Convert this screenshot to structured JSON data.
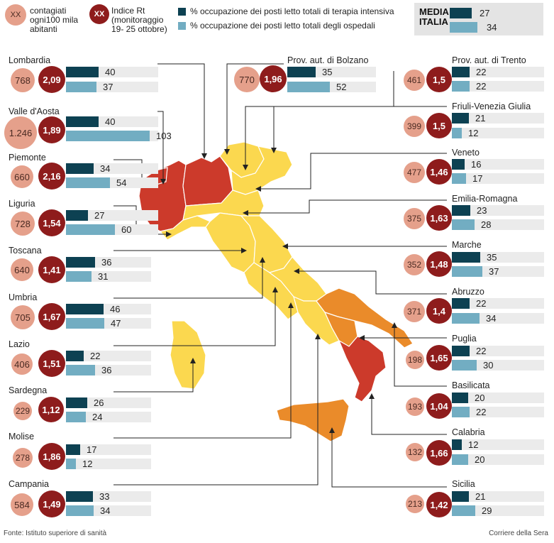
{
  "legend": {
    "cases_sample": "XX",
    "cases_label": "contagiati ogni100 mila abitanti",
    "rt_sample": "XX",
    "rt_label": "Indice Rt (monitoraggio 19- 25 ottobre)",
    "icu_label": "% occupazione dei posti letto totali di terapia intensiva",
    "hosp_label": "% occupazione dei posti letto totali degli ospedali"
  },
  "national": {
    "label": "MEDIA ITALIA",
    "icu": 27,
    "hosp": 34
  },
  "colors": {
    "icu": "#0d4152",
    "hosp": "#72adc2",
    "cases_circle": "#e5a08b",
    "rt_circle": "#8e1c1c",
    "zone_red": "#cc3a2b",
    "zone_orange": "#ea8b2a",
    "zone_yellow": "#fbd84f"
  },
  "regions": [
    {
      "name": "Lombardia",
      "cases": "768",
      "rt": "2,09",
      "icu": 40,
      "hosp": 37,
      "zone": "red"
    },
    {
      "name": "Valle d'Aosta",
      "cases": "1.246",
      "rt": "1,89",
      "icu": 40,
      "hosp": 103,
      "zone": "red"
    },
    {
      "name": "Piemonte",
      "cases": "660",
      "rt": "2,16",
      "icu": 34,
      "hosp": 54,
      "zone": "red"
    },
    {
      "name": "Liguria",
      "cases": "728",
      "rt": "1,54",
      "icu": 27,
      "hosp": 60,
      "zone": "yellow"
    },
    {
      "name": "Toscana",
      "cases": "640",
      "rt": "1,41",
      "icu": 36,
      "hosp": 31,
      "zone": "yellow"
    },
    {
      "name": "Umbria",
      "cases": "705",
      "rt": "1,67",
      "icu": 46,
      "hosp": 47,
      "zone": "yellow"
    },
    {
      "name": "Lazio",
      "cases": "406",
      "rt": "1,51",
      "icu": 22,
      "hosp": 36,
      "zone": "yellow"
    },
    {
      "name": "Sardegna",
      "cases": "229",
      "rt": "1,12",
      "icu": 26,
      "hosp": 24,
      "zone": "yellow"
    },
    {
      "name": "Molise",
      "cases": "278",
      "rt": "1,86",
      "icu": 17,
      "hosp": 12,
      "zone": "yellow"
    },
    {
      "name": "Campania",
      "cases": "584",
      "rt": "1,49",
      "icu": 33,
      "hosp": 34,
      "zone": "yellow"
    },
    {
      "name": "Prov. aut. di Bolzano",
      "cases": "770",
      "rt": "1,96",
      "icu": 35,
      "hosp": 52,
      "zone": "yellow"
    },
    {
      "name": "Prov. aut. di Trento",
      "cases": "461",
      "rt": "1,5",
      "icu": 22,
      "hosp": 22,
      "zone": "yellow"
    },
    {
      "name": "Friuli-Venezia Giulia",
      "cases": "399",
      "rt": "1,5",
      "icu": 21,
      "hosp": 12,
      "zone": "yellow"
    },
    {
      "name": "Veneto",
      "cases": "477",
      "rt": "1,46",
      "icu": 16,
      "hosp": 17,
      "zone": "yellow"
    },
    {
      "name": "Emilia-Romagna",
      "cases": "375",
      "rt": "1,63",
      "icu": 23,
      "hosp": 28,
      "zone": "yellow"
    },
    {
      "name": "Marche",
      "cases": "352",
      "rt": "1,48",
      "icu": 35,
      "hosp": 37,
      "zone": "yellow"
    },
    {
      "name": "Abruzzo",
      "cases": "371",
      "rt": "1,4",
      "icu": 22,
      "hosp": 34,
      "zone": "yellow"
    },
    {
      "name": "Puglia",
      "cases": "198",
      "rt": "1,65",
      "icu": 22,
      "hosp": 30,
      "zone": "orange"
    },
    {
      "name": "Basilicata",
      "cases": "193",
      "rt": "1,04",
      "icu": 20,
      "hosp": 22,
      "zone": "orange"
    },
    {
      "name": "Calabria",
      "cases": "132",
      "rt": "1,66",
      "icu": 12,
      "hosp": 20,
      "zone": "red"
    },
    {
      "name": "Sicilia",
      "cases": "213",
      "rt": "1,42",
      "icu": 21,
      "hosp": 29,
      "zone": "orange"
    }
  ],
  "footer": {
    "source": "Fonte: Istituto superiore di sanità",
    "credit": "Corriere della Sera"
  }
}
